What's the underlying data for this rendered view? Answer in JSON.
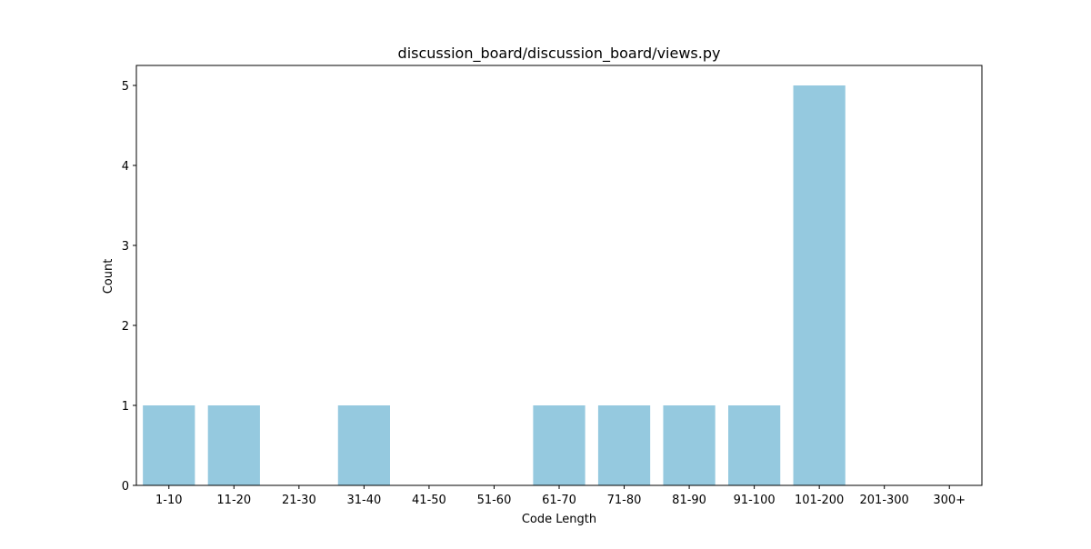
{
  "chart_data": {
    "type": "bar",
    "title": "discussion_board/discussion_board/views.py",
    "xlabel": "Code Length",
    "ylabel": "Count",
    "categories": [
      "1-10",
      "11-20",
      "21-30",
      "31-40",
      "41-50",
      "51-60",
      "61-70",
      "71-80",
      "81-90",
      "91-100",
      "101-200",
      "201-300",
      "300+"
    ],
    "values": [
      1,
      1,
      0,
      1,
      0,
      0,
      1,
      1,
      1,
      1,
      5,
      0,
      0
    ],
    "ylim": [
      0,
      5.25
    ],
    "yticks": [
      0,
      1,
      2,
      3,
      4,
      5
    ],
    "grid": false,
    "colors": {
      "bar": "#95c9df",
      "axis": "#000000",
      "background": "#ffffff"
    }
  }
}
